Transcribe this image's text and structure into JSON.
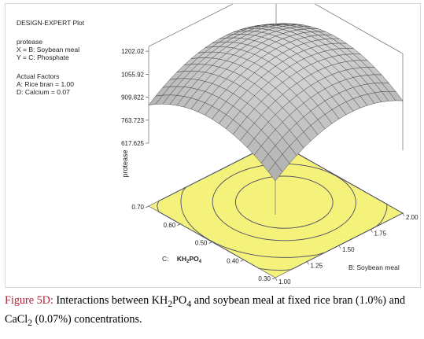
{
  "header": {
    "title": "DESIGN-EXPERT Plot",
    "response": "protease",
    "x_def": "X = B: Soybean meal",
    "y_def": "Y = C: Phosphate",
    "actual_factors_title": "Actual Factors",
    "factor_a": "A: Rice bran = 1.00",
    "factor_d": "D: Calcium = 0.07"
  },
  "axes": {
    "z_label": "protease",
    "y_axis_prefix": "C:",
    "y_axis_name": "KH",
    "y_axis_sub1": "2",
    "y_axis_mid": "PO",
    "y_axis_sub2": "4",
    "x_axis_label": "B: Soybean meal"
  },
  "chart_data": {
    "type": "surface",
    "z_label": "protease",
    "z_ticks": [
      "617.625",
      "763.723",
      "909.822",
      "1055.92",
      "1202.02"
    ],
    "x_label": "B: Soybean meal",
    "x_ticks": [
      "1.00",
      "1.25",
      "1.50",
      "1.75",
      "2.00"
    ],
    "y_ticks": [
      "0.30",
      "0.40",
      "0.50",
      "0.60",
      "0.70"
    ],
    "zlim": [
      617.625,
      1202.02
    ],
    "xlim": [
      1.0,
      2.0
    ],
    "ylim": [
      0.3,
      0.7
    ],
    "surface_model": {
      "intercept": 1188,
      "x_center": 1.5,
      "y_center": 0.5,
      "x_quadratic": -560,
      "y_quadratic": -3800,
      "x_linear": 100,
      "y_linear": 70
    },
    "contour_levels": [
      1150,
      1100,
      1000,
      900
    ],
    "colors": {
      "surface": "#c9c9c9",
      "surface_dark": "#8f8f8f",
      "floor": "#f4f27a",
      "contour": "#4a4a66"
    }
  },
  "caption": {
    "label": "Figure 5D:",
    "text_1": " Interactions between KH",
    "sub_1": "2",
    "text_2": "PO",
    "sub_2": "4",
    "text_3": " and soybean meal at fixed rice bran (1.0%) and CaCl",
    "sub_3": "2",
    "text_4": " (0.07%) concentrations."
  }
}
